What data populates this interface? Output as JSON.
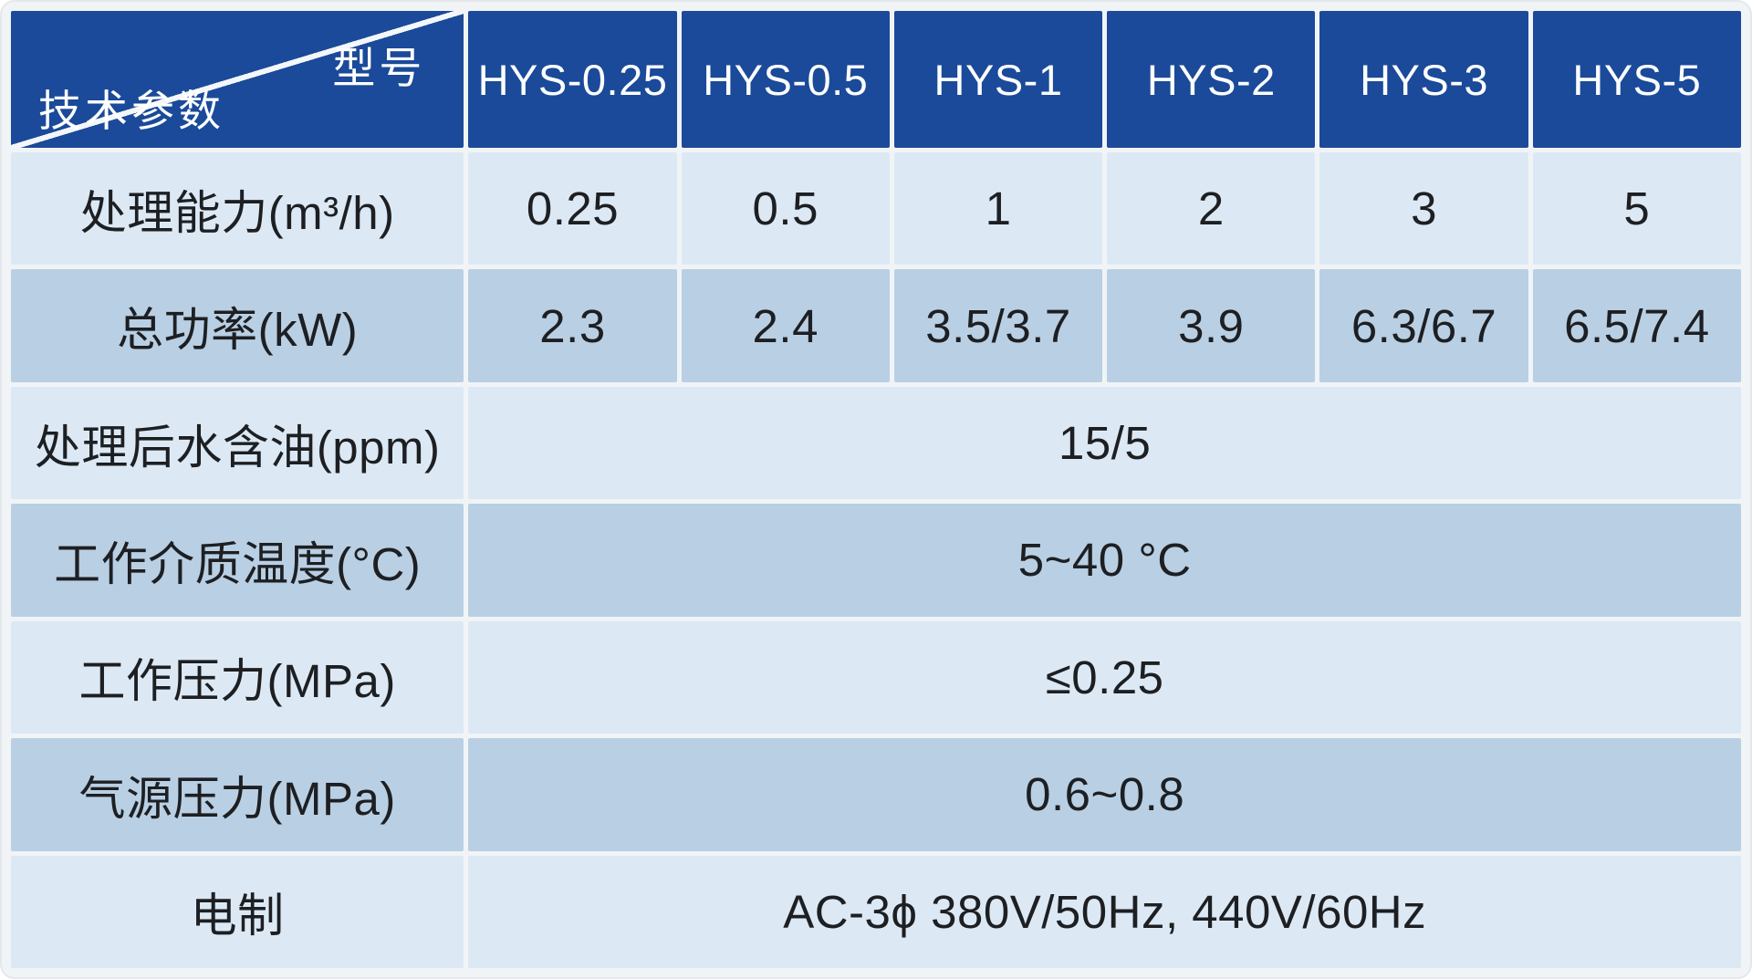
{
  "table": {
    "corner": {
      "model_label": "型号",
      "param_label": "技术参数"
    },
    "models": [
      "HYS-0.25",
      "HYS-0.5",
      "HYS-1",
      "HYS-2",
      "HYS-3",
      "HYS-5"
    ],
    "rows": [
      {
        "label": "处理能力(m³/h)",
        "values": [
          "0.25",
          "0.5",
          "1",
          "2",
          "3",
          "5"
        ]
      },
      {
        "label": "总功率(kW)",
        "values": [
          "2.3",
          "2.4",
          "3.5/3.7",
          "3.9",
          "6.3/6.7",
          "6.5/7.4"
        ]
      },
      {
        "label": "处理后水含油(ppm)",
        "span_value": "15/5"
      },
      {
        "label": "工作介质温度(°C)",
        "span_value": "5~40 °C"
      },
      {
        "label": "工作压力(MPa)",
        "span_value": "≤0.25"
      },
      {
        "label": "气源压力(MPa)",
        "span_value": "0.6~0.8"
      },
      {
        "label": "电制",
        "span_value": "AC-3ϕ 380V/50Hz, 440V/60Hz"
      }
    ],
    "colors": {
      "header_bg": "#1a4a99",
      "row_light": "#dce9f5",
      "row_dark": "#b9cfe4",
      "frame": "#f1f4f6",
      "header_text": "#ffffff",
      "body_text": "#1d1f22"
    }
  }
}
